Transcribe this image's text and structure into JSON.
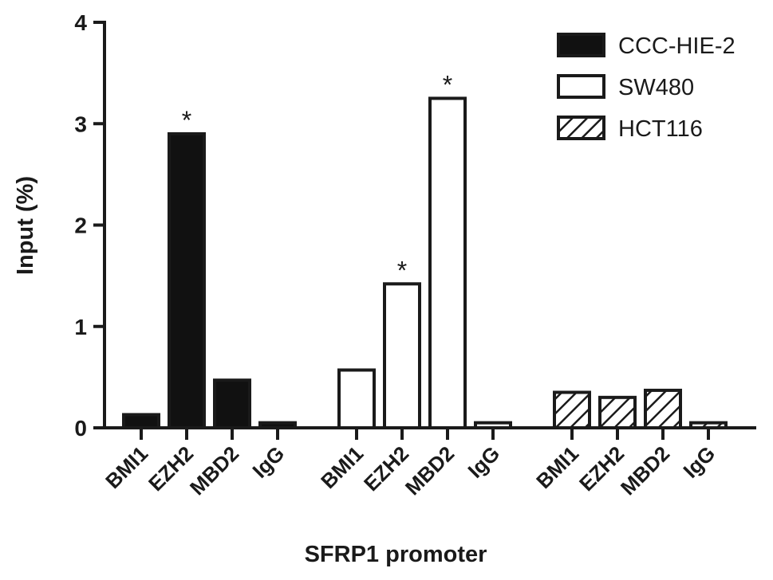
{
  "chart_data": {
    "type": "bar",
    "title": "",
    "xlabel": "SFRP1 promoter",
    "ylabel": "Input (%)",
    "ylim": [
      0,
      4
    ],
    "yticks": [
      "0",
      "1",
      "2",
      "3",
      "4"
    ],
    "grid": false,
    "legend_position": "top-right",
    "categories": [
      "BMI1",
      "EZH2",
      "MBD2",
      "IgG"
    ],
    "series": [
      {
        "name": "CCC-HIE-2",
        "fill": "solid",
        "values": [
          0.13,
          2.9,
          0.47,
          0.05
        ],
        "significance": [
          "",
          "*",
          "",
          ""
        ]
      },
      {
        "name": "SW480",
        "fill": "open",
        "values": [
          0.57,
          1.42,
          3.25,
          0.05
        ],
        "significance": [
          "",
          "*",
          "*",
          ""
        ]
      },
      {
        "name": "HCT116",
        "fill": "hatched",
        "values": [
          0.35,
          0.3,
          0.37,
          0.05
        ],
        "significance": [
          "",
          "",
          "",
          ""
        ]
      }
    ],
    "colors": {
      "ink": "#1a1a1a",
      "solid_fill": "#111111",
      "open_fill": "#ffffff"
    }
  }
}
